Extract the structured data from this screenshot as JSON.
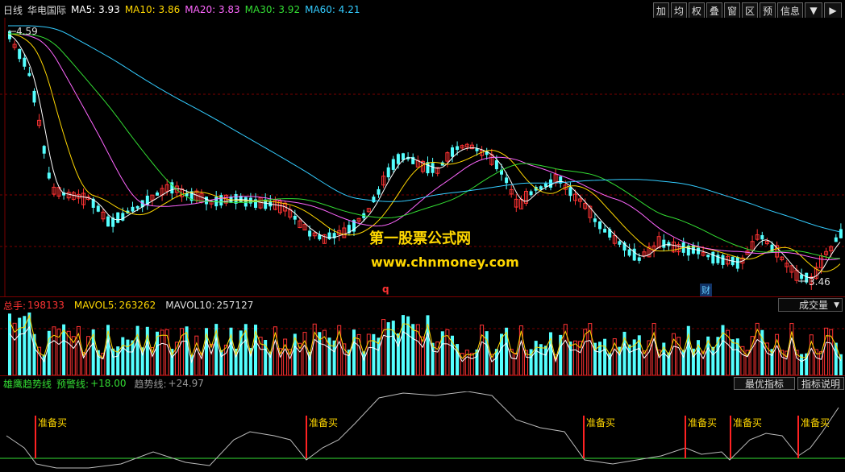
{
  "header": {
    "period": "日线",
    "stock_name": "华电国际",
    "ma": [
      {
        "label": "MA5:",
        "value": "3.93",
        "color": "#ffffff"
      },
      {
        "label": "MA10:",
        "value": "3.86",
        "color": "#ffd700"
      },
      {
        "label": "MA20:",
        "value": "3.83",
        "color": "#ff66ff"
      },
      {
        "label": "MA30:",
        "value": "3.92",
        "color": "#33dd33"
      },
      {
        "label": "MA60:",
        "value": "4.21",
        "color": "#33ccff"
      }
    ],
    "toolbar": [
      "加",
      "均",
      "权",
      "叠",
      "窗",
      "区",
      "预",
      "信息"
    ],
    "toolbar_icons": [
      "chevron-down-icon",
      "chevron-right-icon"
    ]
  },
  "price_chart": {
    "high_label": "4.59",
    "low_label": "3.46",
    "q_marker": "q",
    "cai_marker": "财"
  },
  "watermark": {
    "line1": "第一股票公式网",
    "line2": "www.chnmoney.com"
  },
  "volume_panel": {
    "total_label": "总手:",
    "total_value": "198133",
    "mavol5_label": "MAVOL5:",
    "mavol5_value": "263262",
    "mavol10_label": "MAVOL10:",
    "mavol10_value": "257127",
    "dropdown_label": "成交量"
  },
  "indicator_panel": {
    "name": "雄鹰趋势线",
    "warn_label": "预警线:",
    "warn_value": "+18.00",
    "trend_label": "趋势线:",
    "trend_value": "+24.97",
    "btn_best": "最优指标",
    "btn_help": "指标说明",
    "signal_label": "准备买"
  },
  "colors": {
    "up": "#ff3333",
    "down": "#54ffff",
    "grid": "#7a0000",
    "baseline": "#33dd33"
  }
}
